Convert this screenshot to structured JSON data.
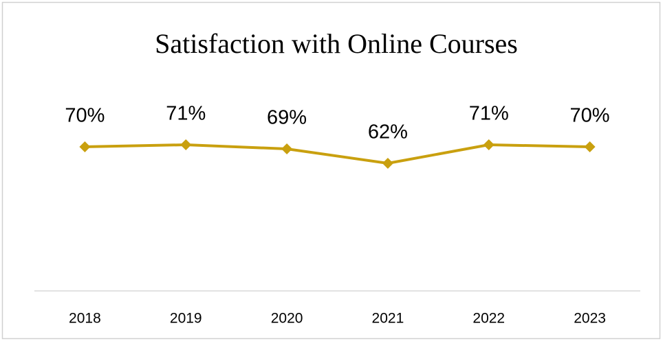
{
  "chart_data": {
    "type": "line",
    "title": "Satisfaction with Online Courses",
    "categories": [
      "2018",
      "2019",
      "2020",
      "2021",
      "2022",
      "2023"
    ],
    "series": [
      {
        "name": "Satisfaction",
        "color": "#c9a00f",
        "values": [
          70,
          71,
          69,
          62,
          71,
          70
        ],
        "value_labels": [
          "70%",
          "71%",
          "69%",
          "62%",
          "71%",
          "70%"
        ]
      }
    ],
    "ylim": [
      0,
      100
    ]
  }
}
